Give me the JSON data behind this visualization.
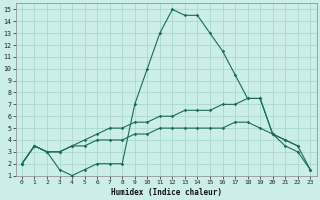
{
  "xlabel": "Humidex (Indice chaleur)",
  "bg_color": "#cceee8",
  "grid_color": "#aad8d0",
  "line_color": "#1a6b5a",
  "xlim": [
    -0.5,
    23.5
  ],
  "ylim": [
    1,
    15.5
  ],
  "xticks": [
    0,
    1,
    2,
    3,
    4,
    5,
    6,
    7,
    8,
    9,
    10,
    11,
    12,
    13,
    14,
    15,
    16,
    17,
    18,
    19,
    20,
    21,
    22,
    23
  ],
  "yticks": [
    1,
    2,
    3,
    4,
    5,
    6,
    7,
    8,
    9,
    10,
    11,
    12,
    13,
    14,
    15
  ],
  "s1_x": [
    0,
    1,
    2,
    3,
    4,
    5,
    6,
    7,
    8,
    9,
    10,
    11,
    12,
    13,
    14,
    15,
    16,
    17,
    18,
    19,
    20,
    21,
    22
  ],
  "s1_y": [
    2,
    3.5,
    3,
    1.5,
    1,
    1.5,
    2,
    2,
    2,
    7,
    10,
    13,
    15,
    14.5,
    14.5,
    13,
    11.5,
    9.5,
    7.5,
    7.5,
    4.5,
    4,
    3.5
  ],
  "s2_x": [
    0,
    1,
    2,
    3,
    4,
    5,
    6,
    7,
    8,
    9,
    10,
    11,
    12,
    13,
    14,
    15,
    16,
    17,
    18,
    19,
    20,
    21,
    22,
    23
  ],
  "s2_y": [
    2,
    3.5,
    3,
    3,
    3.5,
    4,
    4.5,
    5,
    5,
    5.5,
    5.5,
    6,
    6,
    6.5,
    6.5,
    6.5,
    7,
    7,
    7.5,
    7.5,
    4.5,
    4,
    3.5,
    1.5
  ],
  "s3_x": [
    0,
    1,
    2,
    3,
    4,
    5,
    6,
    7,
    8,
    9,
    10,
    11,
    12,
    13,
    14,
    15,
    16,
    17,
    18,
    19,
    20,
    21,
    22,
    23
  ],
  "s3_y": [
    2,
    3.5,
    3,
    3,
    3.5,
    3.5,
    4,
    4,
    4,
    4.5,
    4.5,
    5,
    5,
    5,
    5,
    5,
    5,
    5.5,
    5.5,
    5,
    4.5,
    3.5,
    3,
    1.5
  ]
}
